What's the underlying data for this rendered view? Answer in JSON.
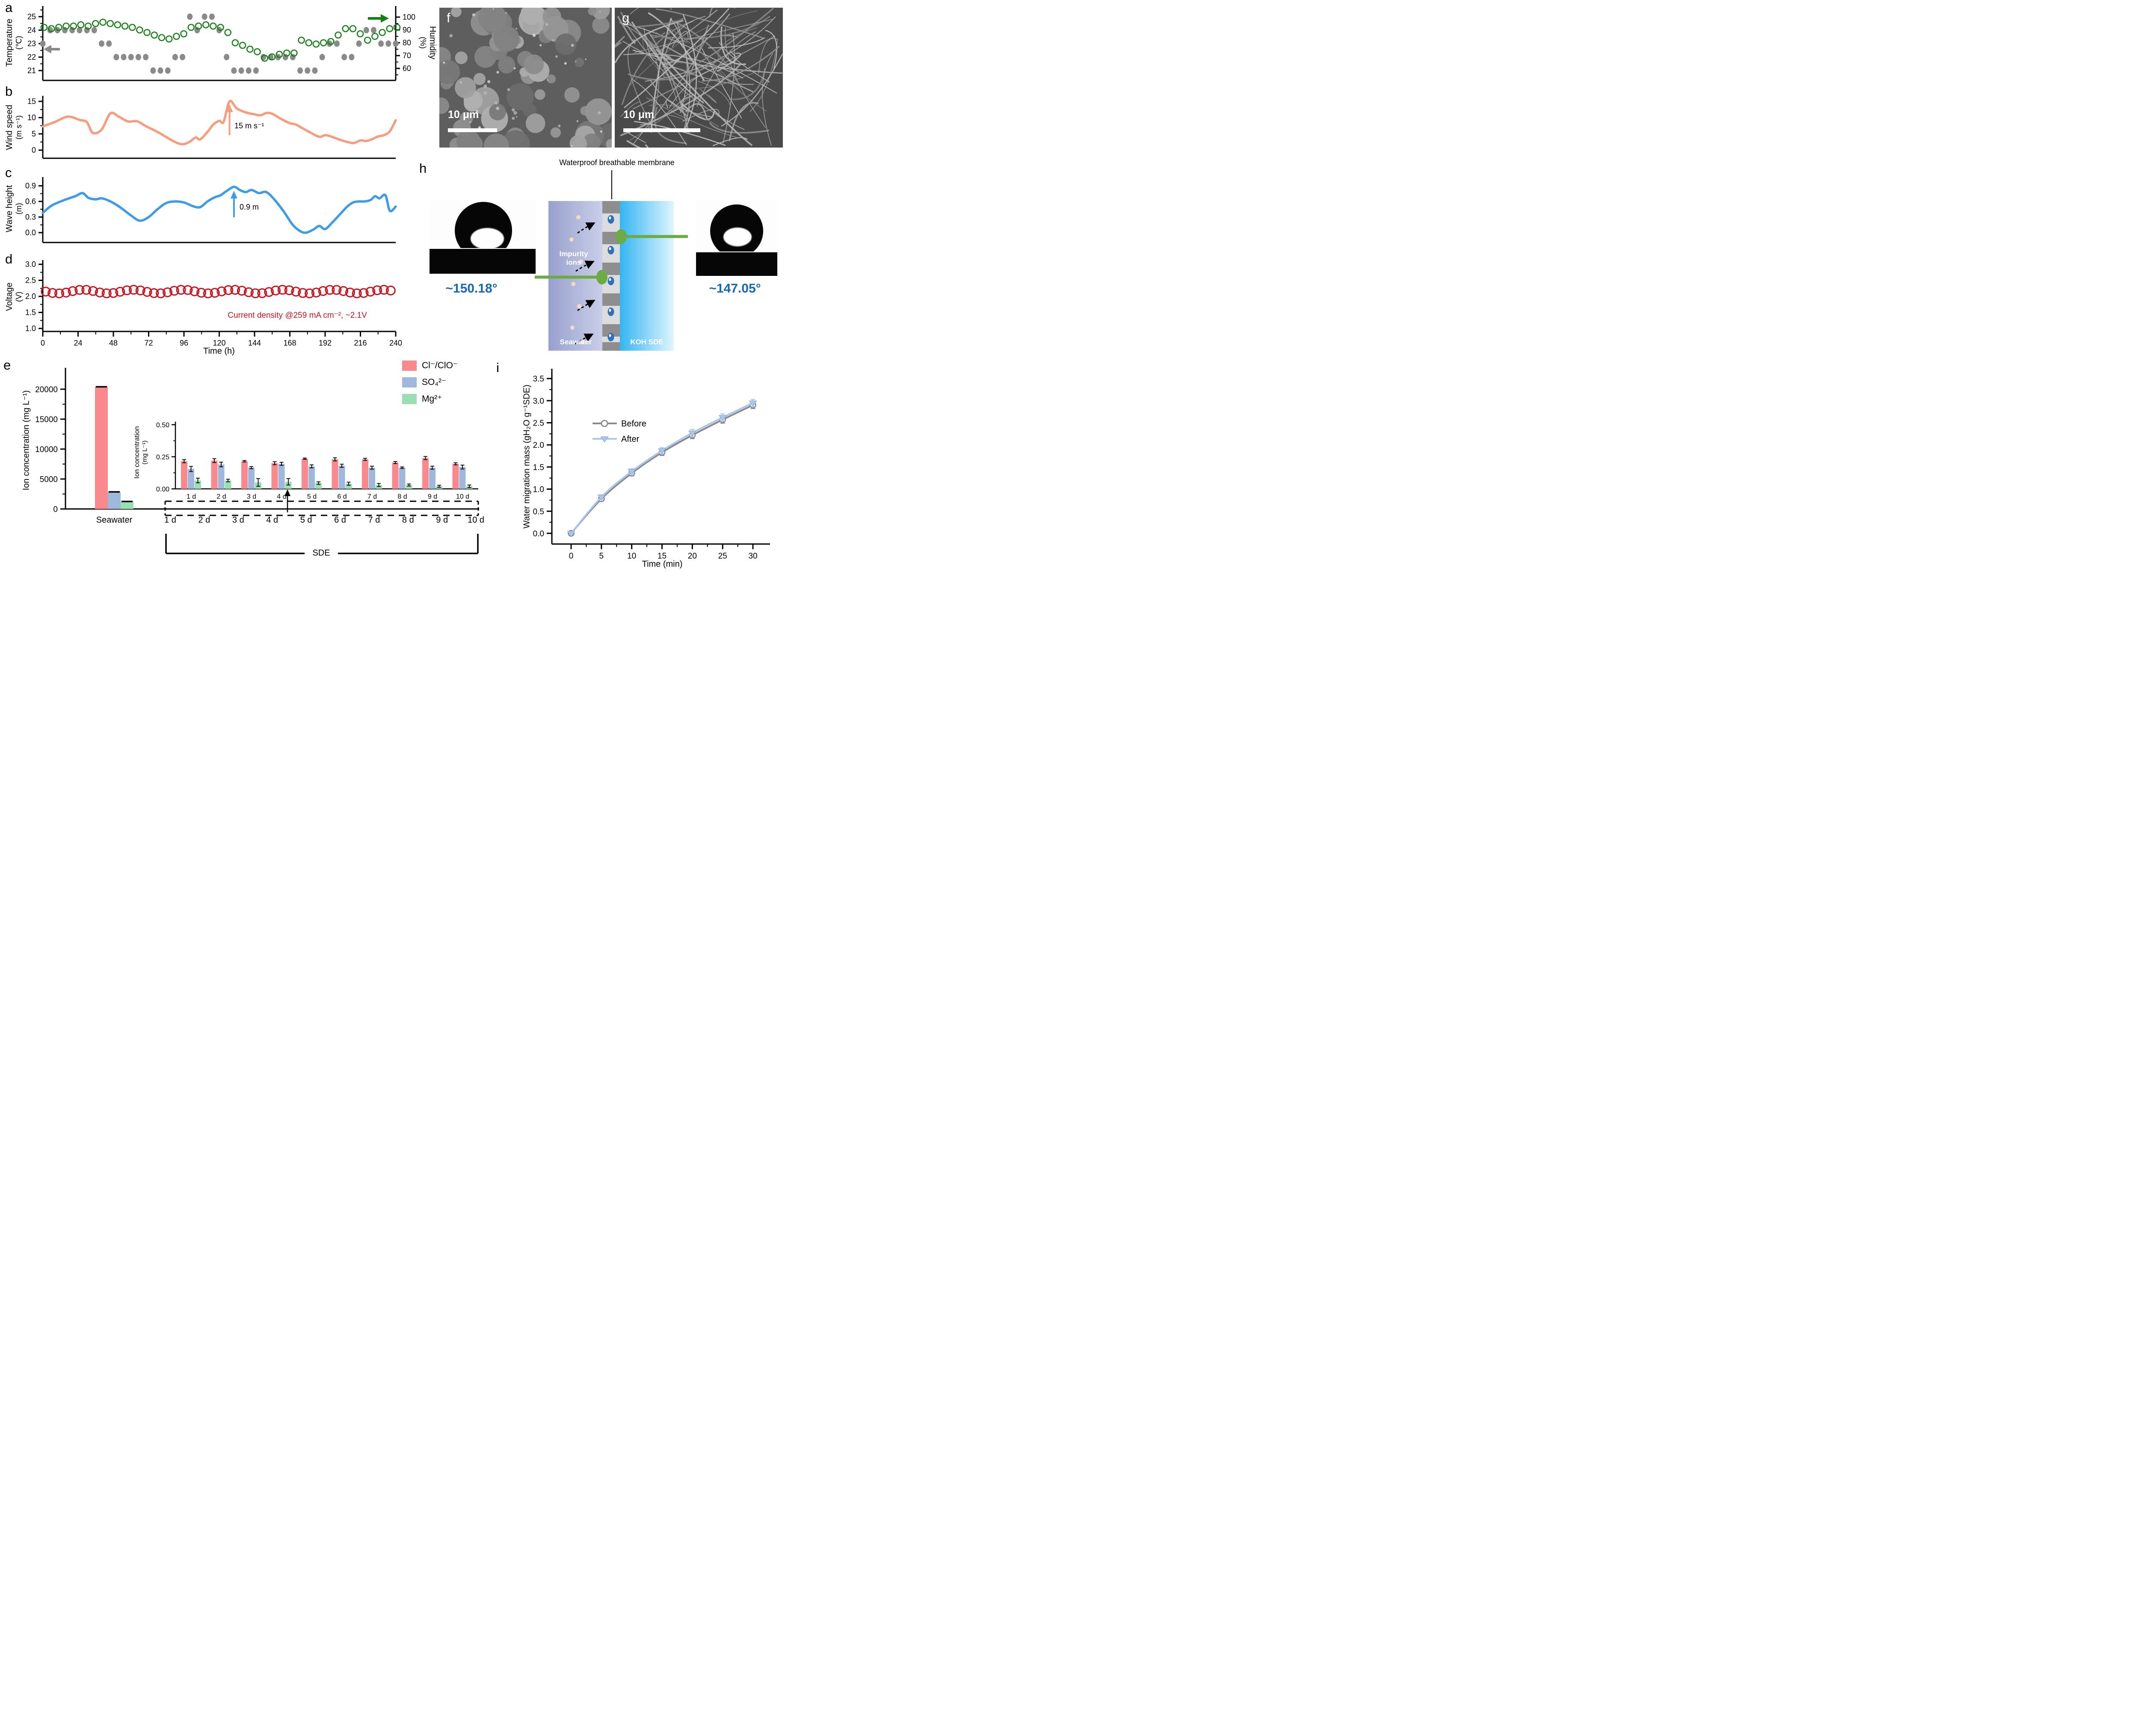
{
  "panels": {
    "a": {
      "letter": "a",
      "ylabel_left_1": "Temperature",
      "ylabel_left_2": "(℃)",
      "ylabel_right_1": "Humidity",
      "ylabel_right_2": "(%)"
    },
    "b": {
      "letter": "b",
      "ylabel_1": "Wind speed",
      "ylabel_2": "(m s⁻¹)",
      "annotation": "15 m s⁻¹"
    },
    "c": {
      "letter": "c",
      "ylabel_1": "Wave height",
      "ylabel_2": "(m)",
      "annotation": "0.9 m"
    },
    "d": {
      "letter": "d",
      "ylabel_1": "Voltage",
      "ylabel_2": "(V)",
      "xlabel": "Time (h)",
      "annotation": "Current density @259 mA cm⁻²,  ~2.1V"
    },
    "e": {
      "letter": "e",
      "ylabel": "Ion concentration (mg L⁻¹)",
      "inset_ylabel_1": "Ion concentration",
      "inset_ylabel_2": "(mg L⁻¹)",
      "bracket_label": "SDE",
      "legend": [
        {
          "label": "Cl⁻/ClO⁻",
          "color": "#F9898D"
        },
        {
          "label": "SO₄²⁻",
          "color": "#9DB8DC"
        },
        {
          "label": "Mg²⁺",
          "color": "#99DFB1"
        }
      ]
    },
    "f": {
      "letter": "f",
      "scale_label": "10 μm"
    },
    "g": {
      "letter": "g",
      "scale_label": "10 μm"
    },
    "h": {
      "letter": "h",
      "title": "Waterproof breathable membrane",
      "impurity_label_1": "Impurity",
      "impurity_label_2": "ions",
      "left_region_label": "Seawater",
      "right_region_label": "KOH SDE",
      "angle_left": "~150.18°",
      "angle_right": "~147.05°"
    },
    "i": {
      "letter": "i",
      "ylabel": "Water migration mass (gH₂O g⁻¹SDE)",
      "xlabel": "Time (min)"
    }
  },
  "chart_data": [
    {
      "id": "a",
      "type": "scatter",
      "title": "",
      "xlabel": "Time (h)",
      "xlim": [
        0,
        240
      ],
      "x_hours": [
        0,
        5,
        10,
        15,
        20,
        25,
        30,
        35,
        40,
        45,
        50,
        55,
        60,
        65,
        70,
        75,
        80,
        85,
        90,
        95,
        100,
        105,
        110,
        115,
        120,
        125,
        130,
        135,
        140,
        145,
        150,
        155,
        160,
        165,
        170,
        175,
        180,
        185,
        190,
        195,
        200,
        205,
        210,
        215,
        220,
        225,
        230,
        235,
        240
      ],
      "series": [
        {
          "name": "Temperature",
          "unit": "℃",
          "marker": "filled-dot",
          "color": "#8a8a8a",
          "ylim": [
            20.5,
            25.5
          ],
          "values": [
            23,
            24,
            24,
            24,
            24,
            24,
            24,
            24,
            23,
            23,
            22,
            22,
            22,
            22,
            22,
            21,
            21,
            21,
            22,
            22,
            25,
            24,
            25,
            25,
            24,
            22,
            21,
            21,
            21,
            21,
            22,
            22,
            22,
            22,
            22,
            21,
            21,
            21,
            22,
            23,
            23,
            22,
            22,
            23,
            24,
            24,
            23,
            23,
            23
          ]
        },
        {
          "name": "Humidity",
          "unit": "%",
          "marker": "open-circle",
          "color": "#148014",
          "ylim": [
            55,
            102
          ],
          "values": [
            92,
            91,
            92,
            93,
            93,
            94,
            93,
            95,
            96,
            95,
            94,
            93,
            92,
            90,
            88,
            86,
            84,
            83,
            85,
            87,
            92,
            93,
            94,
            93,
            92,
            88,
            80,
            78,
            75,
            73,
            68,
            69,
            71,
            72,
            72,
            82,
            80,
            79,
            80,
            81,
            86,
            91,
            91,
            87,
            82,
            85,
            88,
            91,
            92
          ]
        }
      ],
      "yticks_left": [
        "21",
        "22",
        "23",
        "24",
        "25"
      ],
      "yticks_right": [
        "60",
        "70",
        "80",
        "90",
        "100"
      ],
      "grid": false,
      "legend_position": "none"
    },
    {
      "id": "b",
      "type": "line",
      "color": "#F79C7E",
      "ylabel": "Wind speed (m s⁻¹)",
      "ylim": [
        -2,
        18
      ],
      "yticks": [
        "0",
        "5",
        "10",
        "15"
      ],
      "xlim": [
        0,
        240
      ],
      "points": [
        [
          0,
          7.3
        ],
        [
          8,
          8.6
        ],
        [
          17,
          10.3
        ],
        [
          25,
          9.3
        ],
        [
          30,
          8.6
        ],
        [
          34,
          5.3
        ],
        [
          40,
          6.3
        ],
        [
          46,
          11.3
        ],
        [
          52,
          10.2
        ],
        [
          58,
          8.8
        ],
        [
          64,
          8.9
        ],
        [
          70,
          7.4
        ],
        [
          78,
          5.6
        ],
        [
          84,
          4.0
        ],
        [
          90,
          2.5
        ],
        [
          95,
          1.8
        ],
        [
          100,
          2.6
        ],
        [
          104,
          3.9
        ],
        [
          107,
          3.3
        ],
        [
          112,
          5.6
        ],
        [
          116,
          7.9
        ],
        [
          120,
          9.0
        ],
        [
          123,
          8.7
        ],
        [
          127,
          15.0
        ],
        [
          132,
          12.8
        ],
        [
          138,
          11.6
        ],
        [
          144,
          11.0
        ],
        [
          148,
          10.7
        ],
        [
          152,
          11.4
        ],
        [
          156,
          11.2
        ],
        [
          162,
          9.6
        ],
        [
          168,
          8.3
        ],
        [
          172,
          7.9
        ],
        [
          176,
          6.9
        ],
        [
          182,
          5.4
        ],
        [
          188,
          4.1
        ],
        [
          192,
          4.6
        ],
        [
          196,
          4.2
        ],
        [
          202,
          3.2
        ],
        [
          208,
          2.4
        ],
        [
          212,
          2.2
        ],
        [
          216,
          3.0
        ],
        [
          220,
          2.8
        ],
        [
          224,
          3.4
        ],
        [
          228,
          4.2
        ],
        [
          232,
          4.6
        ],
        [
          236,
          5.8
        ],
        [
          240,
          9.2
        ]
      ],
      "annotation": {
        "text": "15 m s⁻¹",
        "at_hour": 127,
        "value": 15
      }
    },
    {
      "id": "c",
      "type": "line",
      "color": "#3E9BEA",
      "ylabel": "Wave height (m)",
      "ylim": [
        -0.2,
        1.1
      ],
      "yticks": [
        "0.0",
        "0.3",
        "0.6",
        "0.9"
      ],
      "xlim": [
        0,
        240
      ],
      "points": [
        [
          0,
          0.38
        ],
        [
          6,
          0.52
        ],
        [
          14,
          0.62
        ],
        [
          22,
          0.7
        ],
        [
          27,
          0.76
        ],
        [
          31,
          0.67
        ],
        [
          36,
          0.64
        ],
        [
          40,
          0.66
        ],
        [
          46,
          0.6
        ],
        [
          53,
          0.48
        ],
        [
          60,
          0.33
        ],
        [
          66,
          0.23
        ],
        [
          72,
          0.3
        ],
        [
          78,
          0.45
        ],
        [
          84,
          0.57
        ],
        [
          90,
          0.6
        ],
        [
          96,
          0.58
        ],
        [
          102,
          0.51
        ],
        [
          107,
          0.49
        ],
        [
          112,
          0.6
        ],
        [
          117,
          0.68
        ],
        [
          121,
          0.72
        ],
        [
          125,
          0.8
        ],
        [
          130,
          0.88
        ],
        [
          134,
          0.82
        ],
        [
          138,
          0.78
        ],
        [
          142,
          0.82
        ],
        [
          147,
          0.76
        ],
        [
          152,
          0.78
        ],
        [
          158,
          0.62
        ],
        [
          164,
          0.4
        ],
        [
          170,
          0.15
        ],
        [
          175,
          0.03
        ],
        [
          179,
          0.0
        ],
        [
          184,
          0.06
        ],
        [
          188,
          0.13
        ],
        [
          192,
          0.07
        ],
        [
          197,
          0.2
        ],
        [
          202,
          0.35
        ],
        [
          207,
          0.5
        ],
        [
          211,
          0.58
        ],
        [
          215,
          0.6
        ],
        [
          219,
          0.6
        ],
        [
          223,
          0.63
        ],
        [
          226,
          0.7
        ],
        [
          229,
          0.66
        ],
        [
          233,
          0.72
        ],
        [
          236,
          0.42
        ],
        [
          240,
          0.5
        ]
      ],
      "annotation": {
        "text": "0.9 m",
        "at_hour": 130,
        "value": 0.88
      }
    },
    {
      "id": "d",
      "type": "scatter-circles",
      "color": "#C9141E",
      "ylabel": "Voltage (V)",
      "ylim": [
        1.0,
        3.0
      ],
      "yticks": [
        "1.0",
        "1.5",
        "2.0",
        "2.5",
        "3.0"
      ],
      "xticks": [
        "0",
        "24",
        "48",
        "72",
        "96",
        "120",
        "144",
        "168",
        "192",
        "216",
        "240"
      ],
      "mean_voltage": 2.15,
      "amplitude": 0.057,
      "count": 52,
      "start_hour": 2,
      "spacing_hours": 4.6,
      "annotation": "Current density @259 mA cm⁻²,  ~2.1V"
    },
    {
      "id": "e_main",
      "type": "bar",
      "ylabel": "Ion concentration (mg L⁻¹)",
      "ylim": [
        0,
        23000
      ],
      "yticks": [
        "0",
        "5000",
        "10000",
        "15000",
        "20000"
      ],
      "categories": [
        "Seawater",
        "1 d",
        "2 d",
        "3 d",
        "4 d",
        "5 d",
        "6 d",
        "7 d",
        "8 d",
        "9 d",
        "10 d"
      ],
      "seawater_values": [
        {
          "ion": "Cl⁻/ClO⁻",
          "value": 20400,
          "error": 120
        },
        {
          "ion": "SO₄²⁻",
          "value": 2850,
          "error": 90
        },
        {
          "ion": "Mg²⁺",
          "value": 1250,
          "error": 70
        }
      ],
      "note_day_bars": "day values near zero at this scale; shown magnified in inset",
      "bracket_label": "SDE"
    },
    {
      "id": "e_inset",
      "type": "bar",
      "ylabel": "Ion concentration (mg L⁻¹)",
      "ylim": [
        0,
        0.5
      ],
      "yticks": [
        "0.00",
        "0.25",
        "0.50"
      ],
      "categories": [
        "1 d",
        "2 d",
        "3 d",
        "4 d",
        "5 d",
        "6 d",
        "7 d",
        "8 d",
        "9 d",
        "10 d"
      ],
      "series": [
        {
          "name": "Cl⁻/ClO⁻",
          "color": "#F9898D",
          "values": [
            0.215,
            0.22,
            0.215,
            0.2,
            0.235,
            0.23,
            0.23,
            0.205,
            0.24,
            0.195
          ],
          "errors": [
            0.012,
            0.015,
            0.006,
            0.012,
            0.005,
            0.012,
            0.008,
            0.008,
            0.012,
            0.008
          ]
        },
        {
          "name": "SO₄²⁻",
          "color": "#9DB8DC",
          "values": [
            0.155,
            0.19,
            0.165,
            0.195,
            0.175,
            0.18,
            0.165,
            0.165,
            0.165,
            0.17
          ],
          "errors": [
            0.02,
            0.018,
            0.008,
            0.012,
            0.012,
            0.012,
            0.012,
            0.006,
            0.012,
            0.015
          ]
        },
        {
          "name": "Mg²⁺",
          "color": "#99DFB1",
          "values": [
            0.065,
            0.065,
            0.05,
            0.055,
            0.045,
            0.04,
            0.03,
            0.03,
            0.02,
            0.02
          ],
          "errors": [
            0.018,
            0.01,
            0.03,
            0.025,
            0.01,
            0.012,
            0.012,
            0.008,
            0.008,
            0.01
          ]
        }
      ]
    },
    {
      "id": "i",
      "type": "line",
      "xlabel": "Time (min)",
      "ylabel": "Water migration mass (gH₂O g⁻¹SDE)",
      "x": [
        0,
        5,
        10,
        15,
        20,
        25,
        30
      ],
      "xticks": [
        "0",
        "5",
        "10",
        "15",
        "20",
        "25",
        "30"
      ],
      "yticks": [
        "0.0",
        "0.5",
        "1.0",
        "1.5",
        "2.0",
        "2.5",
        "3.0",
        "3.5"
      ],
      "ylim": [
        -0.35,
        3.6
      ],
      "series": [
        {
          "name": "Before",
          "color": "#8a8a8a",
          "marker": "open-circle",
          "values": [
            0.0,
            0.78,
            1.36,
            1.83,
            2.22,
            2.57,
            2.9
          ],
          "errors": [
            0.03,
            0.05,
            0.06,
            0.07,
            0.08,
            0.08,
            0.08
          ]
        },
        {
          "name": "After",
          "color": "#A9C6EC",
          "marker": "triangle-down",
          "values": [
            0.0,
            0.82,
            1.4,
            1.87,
            2.27,
            2.62,
            2.95
          ],
          "errors": [
            0.03,
            0.05,
            0.06,
            0.07,
            0.08,
            0.08,
            0.08
          ]
        }
      ],
      "legend_position": "upper-left"
    }
  ],
  "h_colors": {
    "seawater_left": "#98A1CE",
    "seawater_right": "#C9CEE8",
    "koh_left": "#35B5F2",
    "koh_right": "#DFF5FE",
    "membrane_channel": "#DCDCDC",
    "membrane_block": "#8E8E8E",
    "droplet": "#2E6FC2",
    "impurity_dot": "#F6D9BE",
    "connector_green": "#6CAB44",
    "angle_text": "#1668B5"
  }
}
